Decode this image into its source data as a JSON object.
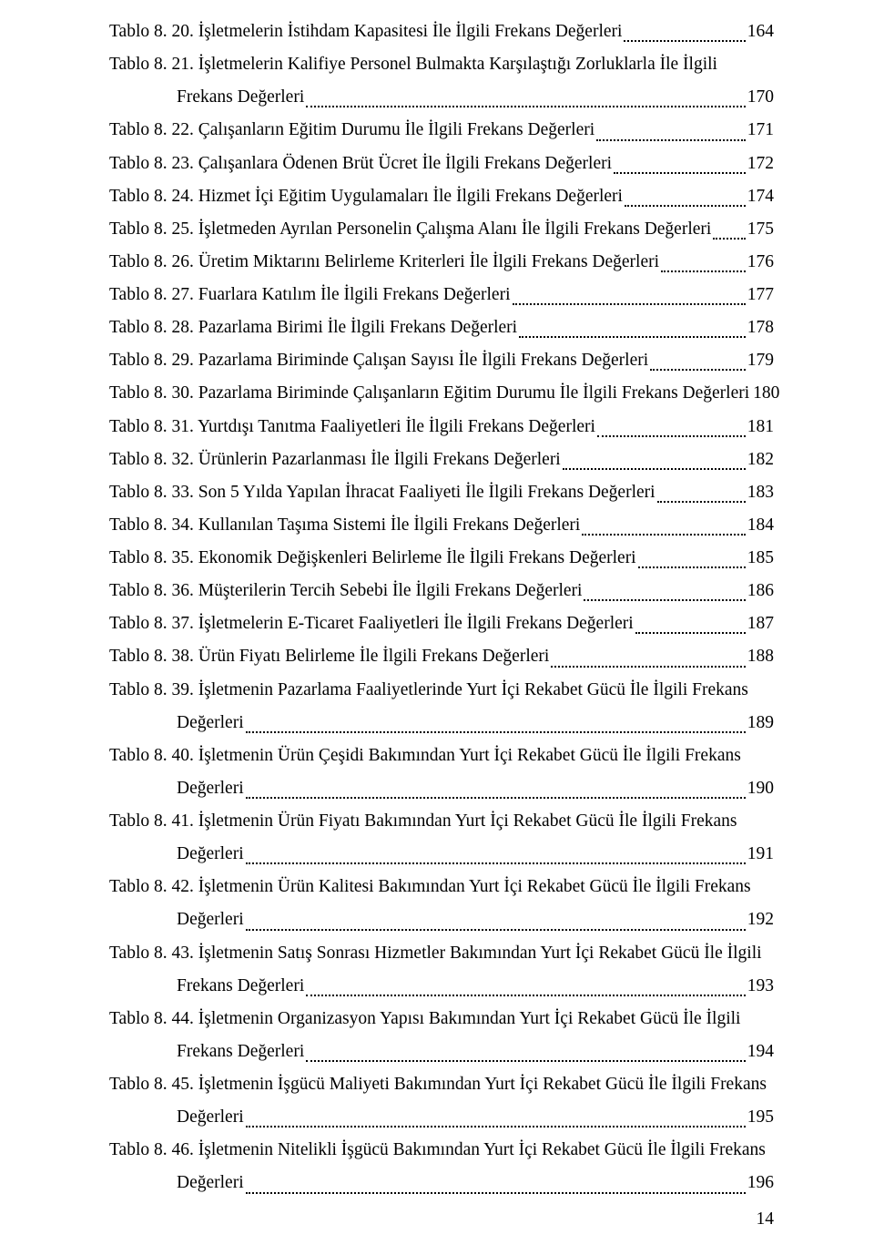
{
  "font": {
    "family": "Times New Roman",
    "size_pt": 12,
    "color": "#000000"
  },
  "background_color": "#ffffff",
  "page_number": "14",
  "entries": [
    {
      "lines": [
        "Tablo 8. 20. İşletmelerin İstihdam Kapasitesi İle İlgili Frekans Değerleri"
      ],
      "page": "164"
    },
    {
      "lines": [
        "Tablo 8. 21. İşletmelerin Kalifiye Personel Bulmakta Karşılaştığı Zorluklarla İle İlgili",
        "Frekans Değerleri"
      ],
      "page": "170"
    },
    {
      "lines": [
        "Tablo 8. 22. Çalışanların Eğitim Durumu İle İlgili Frekans Değerleri"
      ],
      "page": "171"
    },
    {
      "lines": [
        "Tablo 8. 23. Çalışanlara Ödenen Brüt Ücret İle İlgili Frekans Değerleri"
      ],
      "page": "172"
    },
    {
      "lines": [
        "Tablo 8. 24. Hizmet İçi Eğitim Uygulamaları İle İlgili Frekans Değerleri"
      ],
      "page": "174"
    },
    {
      "lines": [
        "Tablo 8. 25. İşletmeden Ayrılan Personelin Çalışma Alanı İle İlgili Frekans Değerleri"
      ],
      "page": "175"
    },
    {
      "lines": [
        "Tablo 8. 26. Üretim Miktarını Belirleme Kriterleri İle İlgili Frekans Değerleri"
      ],
      "page": "176"
    },
    {
      "lines": [
        "Tablo 8. 27. Fuarlara Katılım İle İlgili Frekans Değerleri"
      ],
      "page": "177"
    },
    {
      "lines": [
        "Tablo 8. 28. Pazarlama Birimi İle İlgili Frekans Değerleri"
      ],
      "page": "178"
    },
    {
      "lines": [
        "Tablo 8. 29. Pazarlama Biriminde Çalışan Sayısı İle İlgili Frekans Değerleri"
      ],
      "page": "179"
    },
    {
      "lines": [
        "Tablo 8. 30. Pazarlama Biriminde Çalışanların Eğitim Durumu İle İlgili Frekans Değerleri"
      ],
      "page": "180"
    },
    {
      "lines": [
        "Tablo 8. 31. Yurtdışı Tanıtma Faaliyetleri İle İlgili Frekans Değerleri"
      ],
      "page": "181"
    },
    {
      "lines": [
        "Tablo 8. 32. Ürünlerin Pazarlanması İle İlgili Frekans Değerleri"
      ],
      "page": "182"
    },
    {
      "lines": [
        "Tablo 8. 33. Son 5 Yılda Yapılan İhracat Faaliyeti İle İlgili Frekans Değerleri"
      ],
      "page": "183"
    },
    {
      "lines": [
        "Tablo 8. 34. Kullanılan Taşıma Sistemi İle İlgili Frekans Değerleri"
      ],
      "page": "184"
    },
    {
      "lines": [
        "Tablo 8. 35. Ekonomik Değişkenleri Belirleme İle İlgili Frekans Değerleri"
      ],
      "page": "185"
    },
    {
      "lines": [
        "Tablo 8. 36. Müşterilerin Tercih Sebebi İle İlgili Frekans Değerleri"
      ],
      "page": "186"
    },
    {
      "lines": [
        "Tablo 8. 37. İşletmelerin E-Ticaret Faaliyetleri İle İlgili Frekans Değerleri"
      ],
      "page": "187"
    },
    {
      "lines": [
        "Tablo 8. 38. Ürün Fiyatı Belirleme İle İlgili Frekans Değerleri"
      ],
      "page": "188"
    },
    {
      "lines": [
        "Tablo 8. 39. İşletmenin Pazarlama Faaliyetlerinde Yurt İçi Rekabet Gücü İle İlgili Frekans",
        "Değerleri"
      ],
      "page": "189"
    },
    {
      "lines": [
        "Tablo 8. 40. İşletmenin Ürün Çeşidi Bakımından Yurt İçi Rekabet Gücü İle İlgili Frekans",
        "Değerleri"
      ],
      "page": "190"
    },
    {
      "lines": [
        "Tablo 8. 41. İşletmenin Ürün Fiyatı Bakımından Yurt İçi Rekabet Gücü İle İlgili Frekans",
        "Değerleri"
      ],
      "page": "191"
    },
    {
      "lines": [
        "Tablo 8. 42. İşletmenin Ürün Kalitesi Bakımından Yurt İçi Rekabet Gücü İle İlgili Frekans",
        "Değerleri"
      ],
      "page": "192"
    },
    {
      "lines": [
        "Tablo 8. 43. İşletmenin Satış Sonrası Hizmetler Bakımından Yurt İçi Rekabet Gücü İle İlgili",
        "Frekans Değerleri"
      ],
      "page": "193"
    },
    {
      "lines": [
        "Tablo 8. 44. İşletmenin Organizasyon Yapısı Bakımından Yurt İçi Rekabet Gücü İle İlgili",
        "Frekans Değerleri"
      ],
      "page": "194"
    },
    {
      "lines": [
        "Tablo 8. 45. İşletmenin İşgücü Maliyeti Bakımından Yurt İçi Rekabet Gücü İle İlgili Frekans",
        "Değerleri"
      ],
      "page": "195"
    },
    {
      "lines": [
        "Tablo 8. 46. İşletmenin Nitelikli İşgücü Bakımından Yurt İçi Rekabet Gücü İle İlgili Frekans",
        "Değerleri"
      ],
      "page": "196"
    }
  ]
}
